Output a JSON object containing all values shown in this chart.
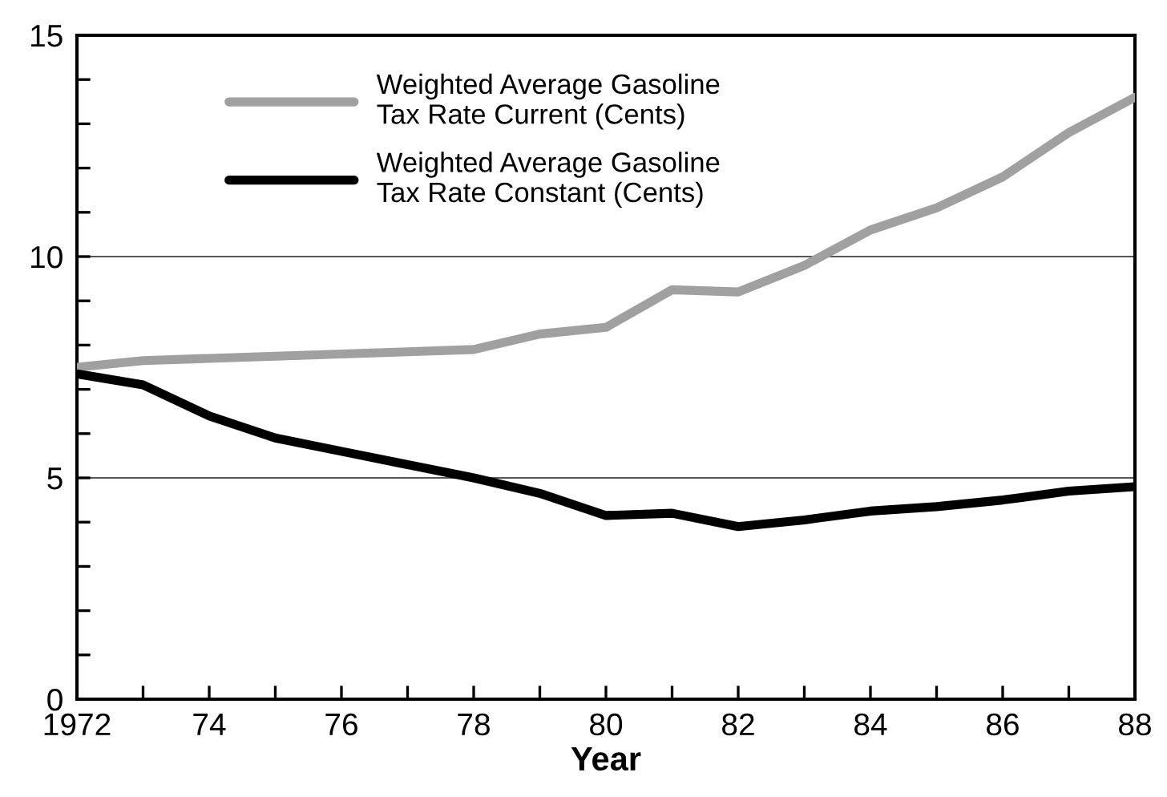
{
  "chart_data": {
    "type": "line",
    "xlabel": "Year",
    "x": [
      1972,
      1973,
      1974,
      1975,
      1976,
      1977,
      1978,
      1979,
      1980,
      1981,
      1982,
      1983,
      1984,
      1985,
      1986,
      1987,
      1988
    ],
    "series": [
      {
        "name": "Weighted Average Gasoline\nTax Rate Current (Cents)",
        "color": "#a0a0a0",
        "values": [
          7.5,
          7.65,
          7.7,
          7.75,
          7.8,
          7.85,
          7.9,
          8.25,
          8.4,
          9.25,
          9.2,
          9.8,
          10.6,
          11.1,
          11.8,
          12.8,
          13.6
        ]
      },
      {
        "name": "Weighted Average Gasoline\nTax Rate Constant (Cents)",
        "color": "#000000",
        "values": [
          7.35,
          7.1,
          6.4,
          5.9,
          5.6,
          5.3,
          5.0,
          4.65,
          4.15,
          4.2,
          3.9,
          4.05,
          4.25,
          4.35,
          4.5,
          4.7,
          4.8
        ]
      }
    ],
    "xlim": [
      1972,
      1988
    ],
    "xticks": [
      {
        "value": 1972,
        "label": "1972"
      },
      {
        "value": 1973,
        "label": null
      },
      {
        "value": 1974,
        "label": "74"
      },
      {
        "value": 1975,
        "label": null
      },
      {
        "value": 1976,
        "label": "76"
      },
      {
        "value": 1977,
        "label": null
      },
      {
        "value": 1978,
        "label": "78"
      },
      {
        "value": 1979,
        "label": null
      },
      {
        "value": 1980,
        "label": "80"
      },
      {
        "value": 1981,
        "label": null
      },
      {
        "value": 1982,
        "label": "82"
      },
      {
        "value": 1983,
        "label": null
      },
      {
        "value": 1984,
        "label": "84"
      },
      {
        "value": 1985,
        "label": null
      },
      {
        "value": 1986,
        "label": "86"
      },
      {
        "value": 1987,
        "label": null
      },
      {
        "value": 1988,
        "label": "88"
      }
    ],
    "ylim": [
      0,
      15
    ],
    "yticks": [
      0,
      {
        "value": 1,
        "label": null
      },
      {
        "value": 2,
        "label": null
      },
      {
        "value": 3,
        "label": null
      },
      {
        "value": 4,
        "label": null
      },
      5,
      {
        "value": 6,
        "label": null
      },
      {
        "value": 7,
        "label": null
      },
      {
        "value": 8,
        "label": null
      },
      {
        "value": 9,
        "label": null
      },
      10,
      {
        "value": 11,
        "label": null
      },
      {
        "value": 12,
        "label": null
      },
      {
        "value": 13,
        "label": null
      },
      {
        "value": 14,
        "label": null
      },
      15
    ],
    "grid": "y",
    "legend": "top left",
    "marker": "none",
    "line_style": "solid"
  }
}
